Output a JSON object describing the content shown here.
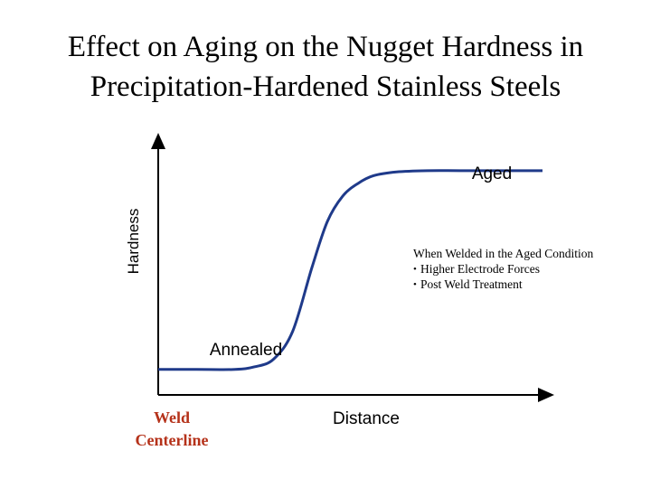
{
  "title_lines": [
    "Effect on Aging on the Nugget Hardness in",
    "Precipitation-Hardened Stainless Steels"
  ],
  "colors": {
    "curve": "#1f3a8a",
    "axis": "#000000",
    "centerline_label": "#b5321a"
  },
  "chart_data": {
    "type": "line",
    "title": "Effect on Aging on the Nugget Hardness in Precipitation-Hardened Stainless Steels",
    "xlabel": "Distance",
    "ylabel": "Hardness",
    "xlim": [
      0,
      100
    ],
    "ylim": [
      0,
      100
    ],
    "grid": false,
    "ticks": false,
    "curve_shape": "sigmoid",
    "series": [
      {
        "values_note_free": true,
        "x": [
          0,
          10,
          20,
          25,
          30,
          35,
          40,
          44,
          48,
          52,
          56,
          62,
          70,
          80,
          100
        ],
        "y": [
          10,
          10,
          10,
          11,
          14,
          25,
          50,
          68,
          78,
          83,
          86,
          87.5,
          88,
          88,
          88
        ]
      }
    ],
    "annotations": {
      "aged": "Aged",
      "annealed": "Annealed",
      "weld_centerline": [
        "Weld",
        "Centerline"
      ],
      "note_heading": "When Welded in the Aged Condition",
      "note_bullets": [
        "Higher Electrode Forces",
        "Post Weld Treatment"
      ]
    }
  }
}
